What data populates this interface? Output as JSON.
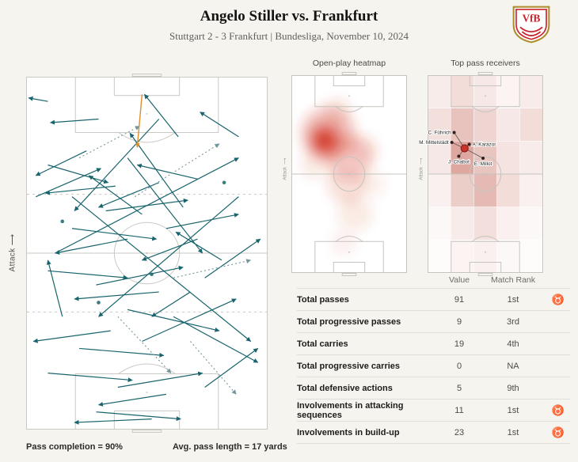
{
  "header": {
    "title": "Angelo Stiller vs. Frankfurt",
    "subtitle": "Stuttgart 2 - 3 Frankfurt | Bundesliga, November 10, 2024",
    "logo_text": "VfB"
  },
  "panels": {
    "pass_map": {
      "attack_label": "Attack",
      "arrow": "⟶",
      "footnotes": {
        "completion": "Pass completion = 90%",
        "avg_length": "Avg. pass length = 17 yards"
      }
    },
    "heatmap": {
      "title": "Open-play heatmap",
      "attack_label": "Attack"
    },
    "receivers": {
      "title": "Top pass receivers",
      "attack_label": "Attack"
    }
  },
  "stats": {
    "columns": [
      "Value",
      "Match Rank"
    ],
    "rows": [
      {
        "label": "Total passes",
        "value": "91",
        "rank": "1st",
        "icon": "♉"
      },
      {
        "label": "Total progressive passes",
        "value": "9",
        "rank": "3rd",
        "icon": ""
      },
      {
        "label": "Total carries",
        "value": "19",
        "rank": "4th",
        "icon": ""
      },
      {
        "label": "Total progressive carries",
        "value": "0",
        "rank": "NA",
        "icon": ""
      },
      {
        "label": "Total defensive actions",
        "value": "5",
        "rank": "9th",
        "icon": ""
      },
      {
        "label": "Involvements in attacking sequences",
        "value": "11",
        "rank": "1st",
        "icon": "♉"
      },
      {
        "label": "Involvements in build-up",
        "value": "23",
        "rank": "1st",
        "icon": "♉"
      }
    ]
  },
  "chart_data": [
    {
      "type": "scatter",
      "name": "pass-map",
      "title": "Pass map",
      "attack_direction": "up",
      "coordinate_system": "percent of pitch, origin top-left, attacking up",
      "pass_completion_pct": 90,
      "avg_pass_length_yards": 17,
      "colors": {
        "completed": "#19646c",
        "incomplete": "#74979b",
        "key": "#dd8f2e"
      },
      "completed_passes": [
        [
          9,
          7,
          1,
          6
        ],
        [
          63,
          17,
          49,
          5
        ],
        [
          30,
          12,
          10,
          13
        ],
        [
          88,
          17,
          72,
          10
        ],
        [
          55,
          12,
          20,
          38
        ],
        [
          9,
          25,
          34,
          30
        ],
        [
          4,
          34,
          31,
          26
        ],
        [
          37,
          31,
          8,
          33
        ],
        [
          55,
          30,
          30,
          37
        ],
        [
          71,
          29,
          46,
          25
        ],
        [
          25,
          21,
          4,
          28
        ],
        [
          33,
          38,
          67,
          35
        ],
        [
          19,
          43,
          54,
          46
        ],
        [
          42,
          46,
          12,
          50
        ],
        [
          58,
          43,
          88,
          39
        ],
        [
          71,
          46,
          48,
          52
        ],
        [
          12,
          50,
          88,
          23
        ],
        [
          9,
          55,
          42,
          57
        ],
        [
          29,
          59,
          65,
          54
        ],
        [
          55,
          61,
          20,
          63
        ],
        [
          74,
          57,
          97,
          46
        ],
        [
          15,
          68,
          9,
          52
        ],
        [
          42,
          23,
          73,
          50
        ],
        [
          19,
          34,
          93,
          75
        ],
        [
          88,
          34,
          30,
          68
        ],
        [
          42,
          66,
          80,
          72
        ],
        [
          61,
          68,
          96,
          81
        ],
        [
          35,
          72,
          3,
          75
        ],
        [
          48,
          75,
          87,
          63
        ],
        [
          22,
          77,
          57,
          79
        ],
        [
          65,
          37,
          43,
          16
        ],
        [
          81,
          52,
          62,
          44
        ],
        [
          48,
          39,
          26,
          28
        ],
        [
          68,
          61,
          52,
          68
        ],
        [
          9,
          84,
          44,
          86
        ],
        [
          38,
          88,
          73,
          84
        ],
        [
          58,
          90,
          30,
          93
        ],
        [
          74,
          88,
          96,
          77
        ],
        [
          29,
          95,
          64,
          97
        ],
        [
          52,
          97,
          20,
          98
        ]
      ],
      "incomplete_passes": [
        [
          45,
          34,
          80,
          19
        ],
        [
          61,
          57,
          93,
          52
        ],
        [
          38,
          68,
          60,
          84
        ],
        [
          22,
          23,
          47,
          14
        ],
        [
          68,
          75,
          87,
          90
        ]
      ],
      "key_passes": [
        [
          48,
          5,
          46,
          20
        ]
      ],
      "touches": [
        [
          82,
          30
        ],
        [
          15,
          41
        ],
        [
          52,
          56
        ],
        [
          30,
          64
        ]
      ]
    },
    {
      "type": "heatmap",
      "name": "open-play-heatmap",
      "title": "Open-play heatmap",
      "color": "#d02e1b",
      "points": [
        [
          32,
          30,
          24,
          0.28
        ],
        [
          30,
          32,
          15,
          0.4
        ],
        [
          29,
          33,
          9,
          0.55
        ],
        [
          28,
          33,
          5,
          0.75
        ],
        [
          50,
          42,
          20,
          0.2
        ],
        [
          48,
          55,
          17,
          0.15
        ],
        [
          62,
          38,
          13,
          0.13
        ],
        [
          40,
          18,
          11,
          0.12
        ],
        [
          55,
          70,
          15,
          0.1
        ],
        [
          45,
          85,
          11,
          0.06
        ],
        [
          70,
          55,
          11,
          0.08
        ],
        [
          20,
          45,
          12,
          0.1
        ]
      ]
    },
    {
      "type": "scatter",
      "name": "top-pass-receivers",
      "title": "Top pass receivers",
      "passer": {
        "name": "A. Stiller",
        "x": 32,
        "y": 37
      },
      "receivers": [
        {
          "name": "C. Führich",
          "x": 23,
          "y": 29,
          "label_pos": "left"
        },
        {
          "name": "M. Mittelstädt",
          "x": 21,
          "y": 34,
          "label_pos": "left"
        },
        {
          "name": "A. Karazor",
          "x": 36,
          "y": 35,
          "label_pos": "right"
        },
        {
          "name": "J. Chabot",
          "x": 27,
          "y": 41,
          "label_pos": "below"
        },
        {
          "name": "E. Millot",
          "x": 48,
          "y": 42,
          "label_pos": "below"
        }
      ],
      "grid": {
        "cols": 5,
        "rows": 6,
        "color": "#b7402e",
        "opacity": [
          [
            0.1,
            0.18,
            0.12,
            0.06,
            0.1
          ],
          [
            0.16,
            0.32,
            0.22,
            0.12,
            0.18
          ],
          [
            0.12,
            0.46,
            0.3,
            0.15,
            0.1
          ],
          [
            0.08,
            0.26,
            0.36,
            0.18,
            0.08
          ],
          [
            0.04,
            0.1,
            0.16,
            0.08,
            0.04
          ],
          [
            0.02,
            0.06,
            0.08,
            0.04,
            0.02
          ]
        ]
      }
    },
    {
      "type": "table",
      "name": "match-stats",
      "columns": [
        "Value",
        "Match Rank"
      ],
      "rows": [
        [
          "Total passes",
          "91",
          "1st"
        ],
        [
          "Total progressive passes",
          "9",
          "3rd"
        ],
        [
          "Total carries",
          "19",
          "4th"
        ],
        [
          "Total progressive carries",
          "0",
          "NA"
        ],
        [
          "Total defensive actions",
          "5",
          "9th"
        ],
        [
          "Involvements in attacking sequences",
          "11",
          "1st"
        ],
        [
          "Involvements in build-up",
          "23",
          "1st"
        ]
      ]
    }
  ]
}
